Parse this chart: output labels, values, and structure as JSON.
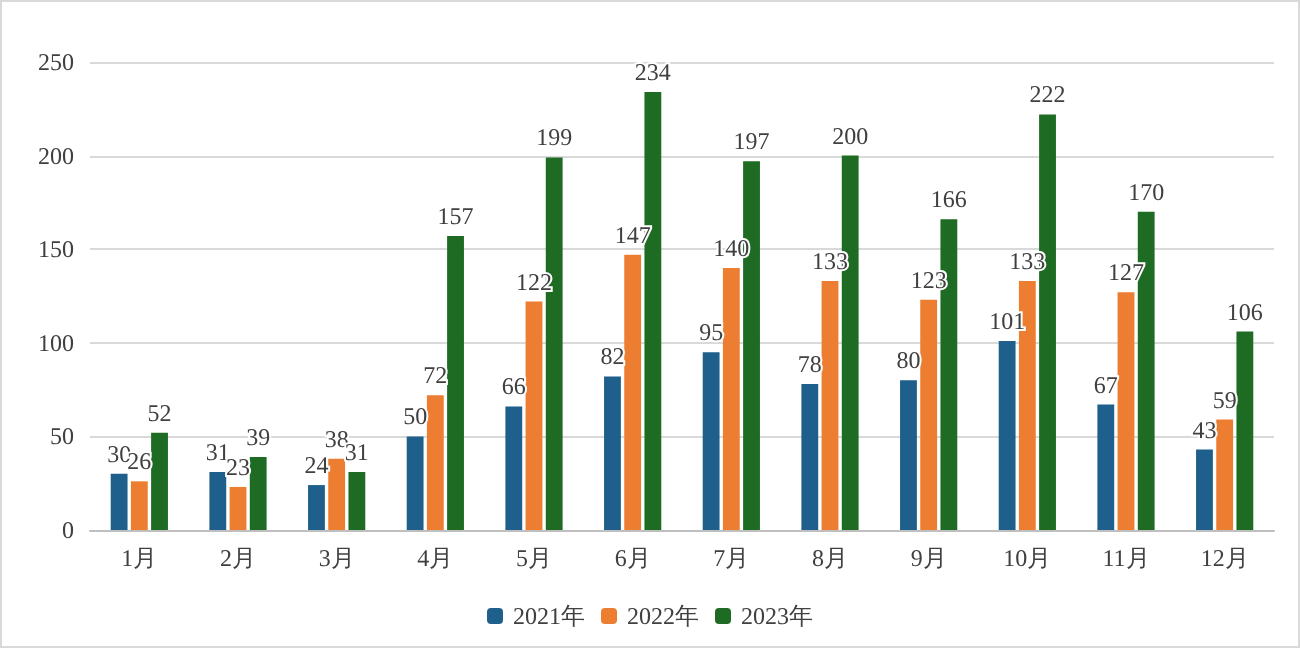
{
  "chart_data": {
    "type": "bar",
    "categories": [
      "1月",
      "2月",
      "3月",
      "4月",
      "5月",
      "6月",
      "7月",
      "8月",
      "9月",
      "10月",
      "11月",
      "12月"
    ],
    "series": [
      {
        "name": "2021年",
        "color": "#1f5f8b",
        "values": [
          30,
          31,
          24,
          50,
          66,
          82,
          95,
          78,
          80,
          101,
          67,
          43
        ]
      },
      {
        "name": "2022年",
        "color": "#ed7d31",
        "values": [
          26,
          23,
          38,
          72,
          122,
          147,
          140,
          133,
          123,
          133,
          127,
          59
        ]
      },
      {
        "name": "2023年",
        "color": "#1e6b23",
        "values": [
          52,
          39,
          31,
          157,
          199,
          234,
          197,
          200,
          166,
          222,
          170,
          106
        ]
      }
    ],
    "ylim": [
      0,
      250
    ],
    "yticks": [
      0,
      50,
      100,
      150,
      200,
      250
    ],
    "grid": "y",
    "legend": "bottom",
    "data_labels": true
  }
}
